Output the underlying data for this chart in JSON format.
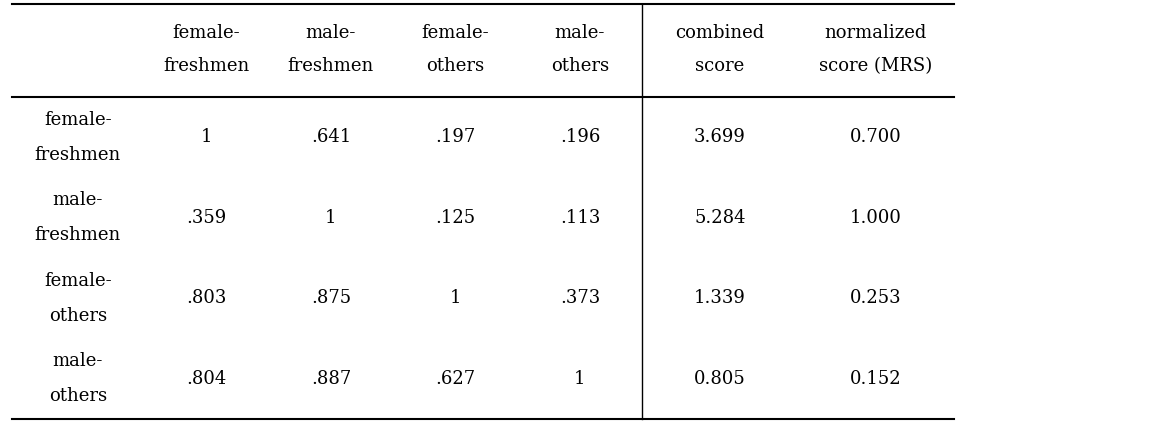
{
  "col_headers": [
    [
      "female-",
      "freshmen"
    ],
    [
      "male-",
      "freshmen"
    ],
    [
      "female-",
      "others"
    ],
    [
      "male-",
      "others"
    ],
    [
      "combined",
      "score"
    ],
    [
      "normalized",
      "score (MRS)"
    ]
  ],
  "row_headers": [
    [
      "female-",
      "freshmen"
    ],
    [
      "male-",
      "freshmen"
    ],
    [
      "female-",
      "others"
    ],
    [
      "male-",
      "others"
    ]
  ],
  "cell_data": [
    [
      "1",
      ".641",
      ".197",
      ".196",
      "3.699",
      "0.700"
    ],
    [
      ".359",
      "1",
      ".125",
      ".113",
      "5.284",
      "1.000"
    ],
    [
      ".803",
      ".875",
      "1",
      ".373",
      "1.339",
      "0.253"
    ],
    [
      ".804",
      ".887",
      ".627",
      "1",
      "0.805",
      "0.152"
    ]
  ],
  "vertical_divider_after_col": 3,
  "bg_color": "#ffffff",
  "text_color": "#000000",
  "font_size": 13,
  "header_font_size": 13
}
